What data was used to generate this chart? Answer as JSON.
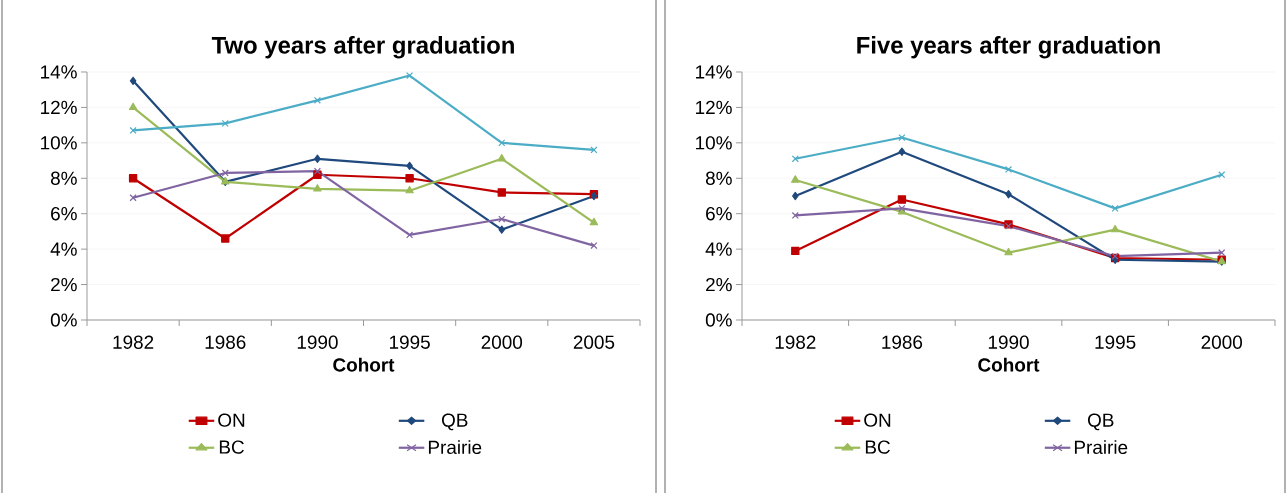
{
  "chart_data": [
    {
      "type": "line",
      "title": "Two years after graduation",
      "xlabel": "Cohort",
      "categories": [
        "1982",
        "1986",
        "1990",
        "1995",
        "2000",
        "2005"
      ],
      "series": [
        {
          "name": "ON",
          "color": "#c00000",
          "marker": "square",
          "values": [
            8.0,
            4.6,
            8.2,
            8.0,
            7.2,
            7.1
          ]
        },
        {
          "name": "QB",
          "color": "#1f497d",
          "marker": "diamond",
          "values": [
            13.5,
            7.8,
            9.1,
            8.7,
            5.1,
            7.0
          ]
        },
        {
          "name": "BC",
          "color": "#9bbb59",
          "marker": "triangle",
          "values": [
            12.0,
            7.8,
            7.4,
            7.3,
            9.1,
            5.5
          ]
        },
        {
          "name": "Prairie",
          "color": "#8064a2",
          "marker": "cross",
          "values": [
            6.9,
            8.3,
            8.4,
            4.8,
            5.7,
            4.2
          ]
        },
        {
          "color": "#4bacc6",
          "marker": "cross",
          "values": [
            10.7,
            11.1,
            12.4,
            13.8,
            10.0,
            9.6
          ]
        }
      ],
      "ylim": [
        0,
        14
      ],
      "yticks": [
        {
          "value": 0,
          "label": "0%"
        },
        {
          "value": 2,
          "label": "2%"
        },
        {
          "value": 4,
          "label": "4%"
        },
        {
          "value": 6,
          "label": "6%"
        },
        {
          "value": 8,
          "label": "8%"
        },
        {
          "value": 10,
          "label": "10%"
        },
        {
          "value": 12,
          "label": "12%"
        },
        {
          "value": 14,
          "label": "14%"
        }
      ],
      "grid": "y",
      "legend": "bottom"
    },
    {
      "type": "line",
      "title": "Five years after graduation",
      "xlabel": "Cohort",
      "categories": [
        "1982",
        "1986",
        "1990",
        "1995",
        "2000"
      ],
      "series": [
        {
          "name": "ON",
          "color": "#c00000",
          "marker": "square",
          "values": [
            3.9,
            6.8,
            5.4,
            3.5,
            3.4
          ]
        },
        {
          "name": "QB",
          "color": "#1f497d",
          "marker": "diamond",
          "values": [
            7.0,
            9.5,
            7.1,
            3.4,
            3.3
          ]
        },
        {
          "name": "BC",
          "color": "#9bbb59",
          "marker": "triangle",
          "values": [
            7.9,
            6.1,
            3.8,
            5.1,
            3.3
          ]
        },
        {
          "name": "Prairie",
          "color": "#8064a2",
          "marker": "cross",
          "values": [
            5.9,
            6.3,
            5.3,
            3.6,
            3.8
          ]
        },
        {
          "color": "#4bacc6",
          "marker": "cross",
          "values": [
            9.1,
            10.3,
            8.5,
            6.3,
            8.2
          ]
        }
      ],
      "ylim": [
        0,
        14
      ],
      "yticks": [
        {
          "value": 0,
          "label": "0%"
        },
        {
          "value": 2,
          "label": "2%"
        },
        {
          "value": 4,
          "label": "4%"
        },
        {
          "value": 6,
          "label": "6%"
        },
        {
          "value": 8,
          "label": "8%"
        },
        {
          "value": 10,
          "label": "10%"
        },
        {
          "value": 12,
          "label": "12%"
        },
        {
          "value": 14,
          "label": "14%"
        }
      ],
      "grid": "y",
      "legend": "bottom"
    }
  ]
}
